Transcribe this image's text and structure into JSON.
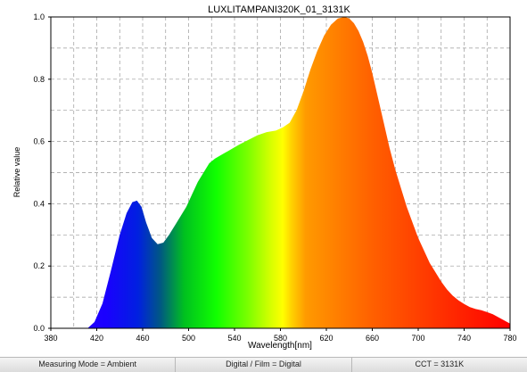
{
  "chart_data": {
    "type": "area",
    "title": "LUXLITAMPANI320K_01_3131K",
    "xlabel": "Wavelength[nm]",
    "ylabel": "Relative value",
    "xlim": [
      380,
      780
    ],
    "ylim": [
      0,
      1.0
    ],
    "xticks": [
      "380",
      "420",
      "460",
      "500",
      "540",
      "580",
      "620",
      "660",
      "700",
      "740",
      "780"
    ],
    "yticks": [
      "0.0",
      "0.2",
      "0.4",
      "0.6",
      "0.8",
      "1.0"
    ],
    "grid": true,
    "fill": "visible-spectrum-gradient",
    "series": [
      {
        "x": [
          380,
          395,
          412,
          418,
          425,
          432,
          440,
          446,
          451,
          455,
          459,
          463,
          468,
          473,
          478,
          483,
          488,
          493,
          498,
          503,
          508,
          513,
          518,
          523,
          530,
          537,
          544,
          552,
          560,
          568,
          576,
          582,
          588,
          594,
          600,
          606,
          612,
          618,
          624,
          630,
          636,
          640,
          644,
          648,
          652,
          656,
          660,
          665,
          670,
          675,
          680,
          685,
          690,
          695,
          700,
          705,
          710,
          715,
          720,
          725,
          730,
          735,
          740,
          745,
          750,
          755,
          760,
          765,
          770,
          775,
          780
        ],
        "y": [
          0,
          0,
          0,
          0.02,
          0.08,
          0.18,
          0.3,
          0.37,
          0.405,
          0.41,
          0.39,
          0.34,
          0.29,
          0.27,
          0.275,
          0.3,
          0.33,
          0.36,
          0.39,
          0.43,
          0.47,
          0.5,
          0.53,
          0.545,
          0.56,
          0.575,
          0.59,
          0.605,
          0.62,
          0.63,
          0.635,
          0.645,
          0.66,
          0.7,
          0.76,
          0.83,
          0.89,
          0.94,
          0.975,
          0.995,
          1.0,
          0.995,
          0.98,
          0.955,
          0.92,
          0.875,
          0.82,
          0.74,
          0.66,
          0.58,
          0.51,
          0.45,
          0.39,
          0.34,
          0.29,
          0.25,
          0.21,
          0.18,
          0.15,
          0.125,
          0.105,
          0.09,
          0.078,
          0.068,
          0.062,
          0.058,
          0.052,
          0.045,
          0.035,
          0.025,
          0.015
        ]
      }
    ]
  },
  "status": {
    "measuring_mode": "Measuring Mode = Ambient",
    "digital_film": "Digital / Film = Digital",
    "cct": "CCT = 3131K"
  },
  "colors": {
    "grid": "#9a9a9a",
    "axis": "#000000",
    "status_bg": "#e4e4e4"
  }
}
